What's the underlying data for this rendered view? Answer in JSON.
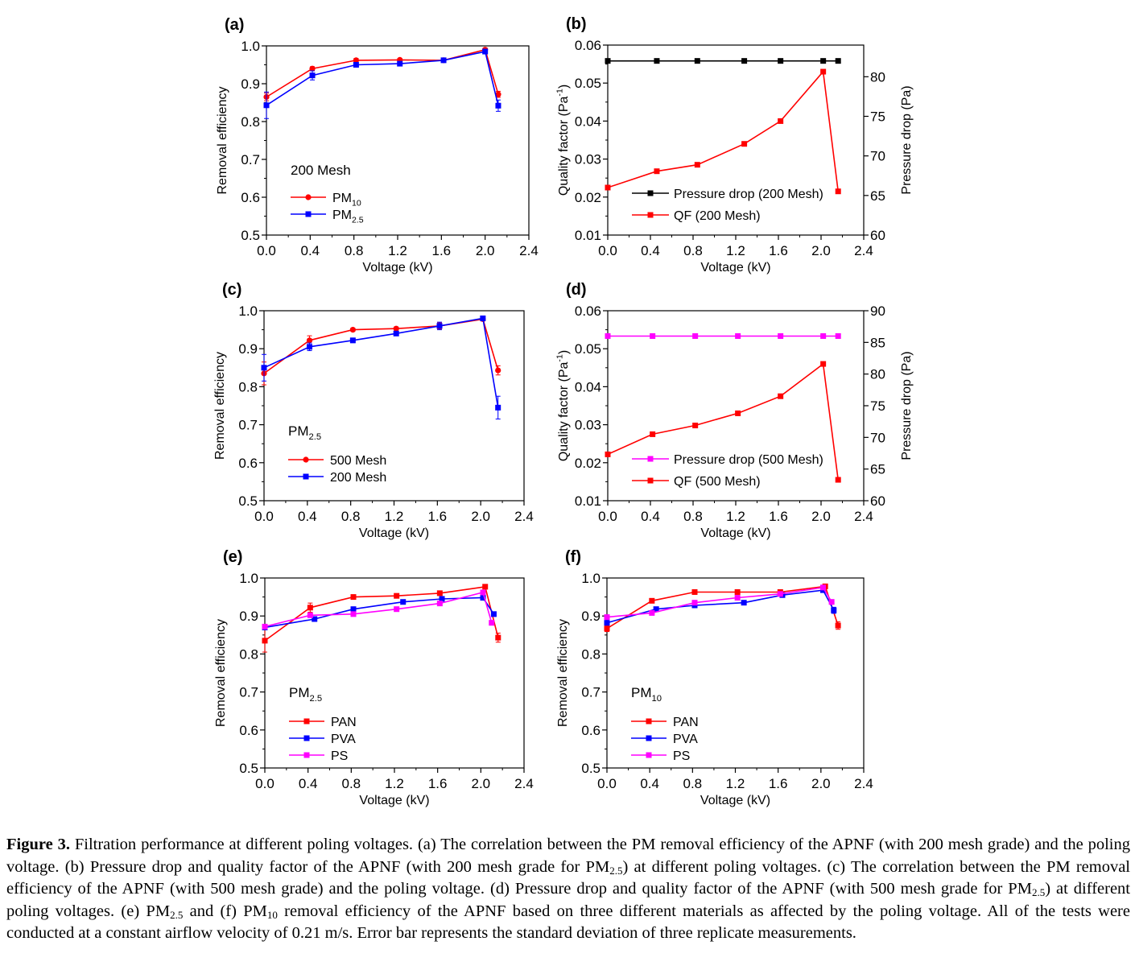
{
  "chart_data": [
    {
      "panel_label": "(a)",
      "type": "line",
      "xlabel": "Voltage (kV)",
      "ylabel": "Removal efficiency",
      "xlim": [
        0,
        2.4
      ],
      "ylim": [
        0.5,
        1.0
      ],
      "xticks": [
        "0.0",
        "0.4",
        "0.8",
        "1.2",
        "1.6",
        "2.0",
        "2.4"
      ],
      "yticks": [
        "0.5",
        "0.6",
        "0.7",
        "0.8",
        "0.9",
        "1.0"
      ],
      "legend_title": "200 Mesh",
      "legend_title_sub": "",
      "series": [
        {
          "name": "PM",
          "name_sub": "10",
          "color": "#ff0000",
          "marker": "circle",
          "x": [
            0.0,
            0.42,
            0.82,
            1.22,
            1.62,
            2.0,
            2.12
          ],
          "y": [
            0.865,
            0.94,
            0.962,
            0.963,
            0.962,
            0.99,
            0.872
          ],
          "err": [
            0.01,
            0.005,
            0.005,
            0.004,
            0.004,
            0.004,
            0.008
          ]
        },
        {
          "name": "PM",
          "name_sub": "2.5",
          "color": "#0000ff",
          "marker": "square",
          "x": [
            0.0,
            0.42,
            0.82,
            1.22,
            1.62,
            2.0,
            2.12
          ],
          "y": [
            0.843,
            0.922,
            0.95,
            0.953,
            0.962,
            0.985,
            0.842
          ],
          "err": [
            0.035,
            0.012,
            0.006,
            0.005,
            0.005,
            0.006,
            0.015
          ]
        }
      ]
    },
    {
      "panel_label": "(b)",
      "type": "line",
      "xlabel": "Voltage (kV)",
      "ylabel": "Quality factor (Pa",
      "ylabel_sup": "-1",
      "ylabel_tail": ")",
      "y2label": "Pressure drop (Pa)",
      "xlim": [
        0,
        2.4
      ],
      "ylim": [
        0.01,
        0.06
      ],
      "y2lim": [
        60,
        84
      ],
      "xticks": [
        "0.0",
        "0.4",
        "0.8",
        "1.2",
        "1.6",
        "2.0",
        "2.4"
      ],
      "yticks": [
        "0.01",
        "0.02",
        "0.03",
        "0.04",
        "0.05",
        "0.06"
      ],
      "y2ticks": [
        "60",
        "65",
        "70",
        "75",
        "80"
      ],
      "series": [
        {
          "name": "Pressure drop (200 Mesh)",
          "color": "#000000",
          "marker": "square",
          "axis": "y2",
          "x": [
            0.0,
            0.46,
            0.84,
            1.28,
            1.62,
            2.02,
            2.16
          ],
          "y": [
            82,
            82,
            82,
            82,
            82,
            82,
            82
          ]
        },
        {
          "name": "QF (200 Mesh)",
          "color": "#ff0000",
          "marker": "square",
          "axis": "y",
          "x": [
            0.0,
            0.46,
            0.84,
            1.28,
            1.62,
            2.02,
            2.16
          ],
          "y": [
            0.0225,
            0.0268,
            0.0285,
            0.034,
            0.04,
            0.053,
            0.0215
          ]
        }
      ]
    },
    {
      "panel_label": "(c)",
      "type": "line",
      "xlabel": "Voltage (kV)",
      "ylabel": "Removal efficiency",
      "xlim": [
        0,
        2.4
      ],
      "ylim": [
        0.5,
        1.0
      ],
      "xticks": [
        "0.0",
        "0.4",
        "0.8",
        "1.2",
        "1.6",
        "2.0",
        "2.4"
      ],
      "yticks": [
        "0.5",
        "0.6",
        "0.7",
        "0.8",
        "0.9",
        "1.0"
      ],
      "legend_title": "PM",
      "legend_title_sub": "2.5",
      "series": [
        {
          "name": "500 Mesh",
          "color": "#ff0000",
          "marker": "circle",
          "x": [
            0.0,
            0.42,
            0.82,
            1.22,
            1.62,
            2.02,
            2.16
          ],
          "y": [
            0.835,
            0.922,
            0.95,
            0.953,
            0.96,
            0.978,
            0.843
          ],
          "err": [
            0.03,
            0.012,
            0.004,
            0.004,
            0.008,
            0.005,
            0.012
          ]
        },
        {
          "name": "200 Mesh",
          "color": "#0000ff",
          "marker": "square",
          "x": [
            0.0,
            0.42,
            0.82,
            1.22,
            1.62,
            2.02,
            2.16
          ],
          "y": [
            0.85,
            0.905,
            0.922,
            0.94,
            0.96,
            0.98,
            0.745
          ],
          "err": [
            0.035,
            0.01,
            0.006,
            0.004,
            0.01,
            0.005,
            0.03
          ]
        }
      ]
    },
    {
      "panel_label": "(d)",
      "type": "line",
      "xlabel": "Voltage (kV)",
      "ylabel": "Quality factor (Pa",
      "ylabel_sup": "-1",
      "ylabel_tail": ")",
      "y2label": "Pressure drop (Pa)",
      "xlim": [
        0,
        2.4
      ],
      "ylim": [
        0.01,
        0.06
      ],
      "y2lim": [
        60,
        90
      ],
      "xticks": [
        "0.0",
        "0.4",
        "0.8",
        "1.2",
        "1.6",
        "2.0",
        "2.4"
      ],
      "yticks": [
        "0.01",
        "0.02",
        "0.03",
        "0.04",
        "0.05",
        "0.06"
      ],
      "y2ticks": [
        "60",
        "65",
        "70",
        "75",
        "80",
        "85",
        "90"
      ],
      "series": [
        {
          "name": "Pressure drop (500 Mesh)",
          "color": "#ff00ff",
          "marker": "square",
          "axis": "y2",
          "x": [
            0.0,
            0.42,
            0.82,
            1.22,
            1.62,
            2.02,
            2.16
          ],
          "y": [
            86,
            86,
            86,
            86,
            86,
            86,
            86
          ]
        },
        {
          "name": "QF (500 Mesh)",
          "color": "#ff0000",
          "marker": "square",
          "axis": "y",
          "x": [
            0.0,
            0.42,
            0.82,
            1.22,
            1.62,
            2.02,
            2.16
          ],
          "y": [
            0.0222,
            0.0275,
            0.0298,
            0.033,
            0.0375,
            0.046,
            0.0155
          ]
        }
      ]
    },
    {
      "panel_label": "(e)",
      "type": "line",
      "xlabel": "Voltage (kV)",
      "ylabel": "Removal efficiency",
      "xlim": [
        0,
        2.4
      ],
      "ylim": [
        0.5,
        1.0
      ],
      "xticks": [
        "0.0",
        "0.4",
        "0.8",
        "1.2",
        "1.6",
        "2.0",
        "2.4"
      ],
      "yticks": [
        "0.5",
        "0.6",
        "0.7",
        "0.8",
        "0.9",
        "1.0"
      ],
      "legend_title": "PM",
      "legend_title_sub": "2.5",
      "series": [
        {
          "name": "PAN",
          "color": "#ff0000",
          "marker": "square",
          "x": [
            0.0,
            0.42,
            0.82,
            1.22,
            1.62,
            2.04,
            2.16
          ],
          "y": [
            0.835,
            0.922,
            0.95,
            0.953,
            0.96,
            0.977,
            0.843
          ],
          "err": [
            0.03,
            0.012,
            0.004,
            0.004,
            0.004,
            0.004,
            0.012
          ]
        },
        {
          "name": "PVA",
          "color": "#0000ff",
          "marker": "square",
          "x": [
            0.0,
            0.46,
            0.82,
            1.28,
            1.64,
            2.02,
            2.12
          ],
          "y": [
            0.87,
            0.892,
            0.918,
            0.937,
            0.945,
            0.948,
            0.905
          ],
          "err": [
            0.006,
            0.006,
            0.005,
            0.005,
            0.005,
            0.006,
            0.006
          ]
        },
        {
          "name": "PS",
          "color": "#ff00ff",
          "marker": "square",
          "x": [
            0.0,
            0.42,
            0.82,
            1.22,
            1.62,
            2.02,
            2.1
          ],
          "y": [
            0.872,
            0.902,
            0.905,
            0.918,
            0.933,
            0.962,
            0.882
          ],
          "err": [
            0.005,
            0.005,
            0.005,
            0.005,
            0.005,
            0.005,
            0.006
          ]
        }
      ]
    },
    {
      "panel_label": "(f)",
      "type": "line",
      "xlabel": "Voltage (kV)",
      "ylabel": "Removal efficiency",
      "xlim": [
        0,
        2.4
      ],
      "ylim": [
        0.5,
        1.0
      ],
      "xticks": [
        "0.0",
        "0.4",
        "0.8",
        "1.2",
        "1.6",
        "2.0",
        "2.4"
      ],
      "yticks": [
        "0.5",
        "0.6",
        "0.7",
        "0.8",
        "0.9",
        "1.0"
      ],
      "legend_title": "PM",
      "legend_title_sub": "10",
      "series": [
        {
          "name": "PAN",
          "color": "#ff0000",
          "marker": "square",
          "x": [
            0.0,
            0.42,
            0.82,
            1.22,
            1.62,
            2.04,
            2.16
          ],
          "y": [
            0.867,
            0.94,
            0.963,
            0.963,
            0.963,
            0.978,
            0.875
          ],
          "err": [
            0.008,
            0.004,
            0.004,
            0.004,
            0.004,
            0.004,
            0.01
          ]
        },
        {
          "name": "PVA",
          "color": "#0000ff",
          "marker": "square",
          "x": [
            0.0,
            0.46,
            0.82,
            1.28,
            1.64,
            2.02,
            2.12
          ],
          "y": [
            0.882,
            0.918,
            0.928,
            0.935,
            0.955,
            0.968,
            0.915
          ],
          "err": [
            0.006,
            0.005,
            0.005,
            0.005,
            0.005,
            0.005,
            0.008
          ]
        },
        {
          "name": "PS",
          "color": "#ff00ff",
          "marker": "square",
          "x": [
            0.0,
            0.42,
            0.82,
            1.22,
            1.62,
            2.02,
            2.1
          ],
          "y": [
            0.897,
            0.908,
            0.935,
            0.948,
            0.958,
            0.975,
            0.937
          ],
          "err": [
            0.005,
            0.005,
            0.005,
            0.005,
            0.005,
            0.005,
            0.006
          ]
        }
      ]
    }
  ],
  "caption": {
    "label": "Figure 3.",
    "t1": " Filtration performance at different poling voltages. (a) The correlation between the PM removal efficiency of the APNF (with 200 mesh grade) and the poling voltage. (b) Pressure drop and quality factor of the APNF (with 200 mesh grade for PM",
    "s1": "2.5",
    "t2": ") at different poling voltages. (c) The correlation between the PM removal efficiency of the APNF (with 500 mesh grade) and the poling voltage. (d) Pressure drop and quality factor of the APNF (with 500 mesh grade for PM",
    "s2": "2.5",
    "t3": ") at different poling voltages. (e) PM",
    "s3": "2.5",
    "t4": " and (f) PM",
    "s4": "10",
    "t5": " removal efficiency of the APNF based on three different materials as affected by the poling voltage. All of the tests were conducted at a constant airflow velocity of 0.21 m/s. Error bar represents the standard deviation of three replicate measurements."
  }
}
